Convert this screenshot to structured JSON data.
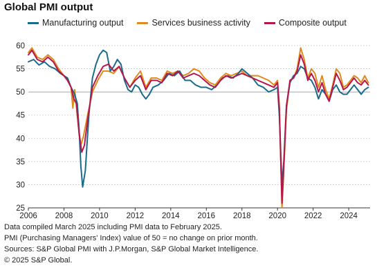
{
  "chart_data": {
    "type": "line",
    "title": "Global PMI output",
    "xlabel": "",
    "ylabel": "",
    "ylim": [
      25,
      60
    ],
    "yticks": [
      25,
      30,
      35,
      40,
      45,
      50,
      55,
      60
    ],
    "xlim": [
      2006,
      2025.2
    ],
    "xticks": [
      2006,
      2008,
      2010,
      2012,
      2014,
      2016,
      2018,
      2020,
      2022,
      2024
    ],
    "reference_line": 50,
    "grid": "horizontal dashed",
    "legend_position": "top",
    "series": [
      {
        "name": "Manufacturing output",
        "color": "#1a6b8a",
        "points": [
          [
            2006.0,
            56.5
          ],
          [
            2006.3,
            57.0
          ],
          [
            2006.6,
            55.8
          ],
          [
            2006.9,
            56.5
          ],
          [
            2007.2,
            55.5
          ],
          [
            2007.5,
            55.0
          ],
          [
            2007.8,
            54.0
          ],
          [
            2008.0,
            53.5
          ],
          [
            2008.2,
            53.0
          ],
          [
            2008.4,
            51.0
          ],
          [
            2008.6,
            49.5
          ],
          [
            2008.75,
            47.5
          ],
          [
            2008.85,
            42.0
          ],
          [
            2008.95,
            34.0
          ],
          [
            2009.05,
            29.5
          ],
          [
            2009.2,
            33.0
          ],
          [
            2009.4,
            45.0
          ],
          [
            2009.6,
            53.0
          ],
          [
            2009.8,
            56.0
          ],
          [
            2010.0,
            58.0
          ],
          [
            2010.2,
            59.0
          ],
          [
            2010.4,
            58.5
          ],
          [
            2010.6,
            54.5
          ],
          [
            2010.8,
            55.5
          ],
          [
            2011.0,
            57.0
          ],
          [
            2011.2,
            56.0
          ],
          [
            2011.4,
            52.5
          ],
          [
            2011.6,
            50.5
          ],
          [
            2011.8,
            50.0
          ],
          [
            2012.0,
            51.5
          ],
          [
            2012.2,
            51.0
          ],
          [
            2012.4,
            49.5
          ],
          [
            2012.6,
            48.5
          ],
          [
            2012.8,
            49.5
          ],
          [
            2013.0,
            51.0
          ],
          [
            2013.3,
            51.5
          ],
          [
            2013.6,
            52.5
          ],
          [
            2013.9,
            54.0
          ],
          [
            2014.2,
            53.5
          ],
          [
            2014.5,
            54.5
          ],
          [
            2014.8,
            52.5
          ],
          [
            2015.1,
            52.5
          ],
          [
            2015.4,
            51.5
          ],
          [
            2015.7,
            51.0
          ],
          [
            2016.0,
            51.0
          ],
          [
            2016.3,
            50.5
          ],
          [
            2016.6,
            51.5
          ],
          [
            2016.9,
            53.0
          ],
          [
            2017.2,
            53.5
          ],
          [
            2017.5,
            53.0
          ],
          [
            2017.8,
            54.0
          ],
          [
            2018.0,
            55.0
          ],
          [
            2018.3,
            54.0
          ],
          [
            2018.6,
            53.0
          ],
          [
            2018.9,
            51.5
          ],
          [
            2019.2,
            51.0
          ],
          [
            2019.5,
            50.0
          ],
          [
            2019.8,
            50.5
          ],
          [
            2020.0,
            51.0
          ],
          [
            2020.1,
            45.0
          ],
          [
            2020.25,
            30.0
          ],
          [
            2020.35,
            35.0
          ],
          [
            2020.5,
            47.0
          ],
          [
            2020.7,
            52.0
          ],
          [
            2020.9,
            53.5
          ],
          [
            2021.1,
            54.0
          ],
          [
            2021.3,
            55.5
          ],
          [
            2021.5,
            55.0
          ],
          [
            2021.7,
            53.0
          ],
          [
            2021.9,
            52.5
          ],
          [
            2022.1,
            51.0
          ],
          [
            2022.3,
            48.5
          ],
          [
            2022.5,
            50.5
          ],
          [
            2022.7,
            49.5
          ],
          [
            2022.9,
            48.0
          ],
          [
            2023.1,
            50.5
          ],
          [
            2023.3,
            51.5
          ],
          [
            2023.5,
            50.0
          ],
          [
            2023.7,
            49.5
          ],
          [
            2023.9,
            49.5
          ],
          [
            2024.1,
            50.5
          ],
          [
            2024.3,
            51.5
          ],
          [
            2024.5,
            50.5
          ],
          [
            2024.7,
            49.5
          ],
          [
            2024.9,
            50.5
          ],
          [
            2025.1,
            51.0
          ]
        ]
      },
      {
        "name": "Services business activity",
        "color": "#e08a1e",
        "points": [
          [
            2006.0,
            58.5
          ],
          [
            2006.2,
            59.5
          ],
          [
            2006.5,
            57.5
          ],
          [
            2006.8,
            57.0
          ],
          [
            2007.1,
            58.0
          ],
          [
            2007.4,
            57.0
          ],
          [
            2007.7,
            55.0
          ],
          [
            2008.0,
            53.5
          ],
          [
            2008.2,
            52.5
          ],
          [
            2008.4,
            51.0
          ],
          [
            2008.5,
            46.5
          ],
          [
            2008.6,
            50.5
          ],
          [
            2008.8,
            43.0
          ],
          [
            2008.95,
            38.5
          ],
          [
            2009.1,
            40.5
          ],
          [
            2009.3,
            44.5
          ],
          [
            2009.6,
            50.0
          ],
          [
            2009.9,
            52.5
          ],
          [
            2010.2,
            54.5
          ],
          [
            2010.5,
            54.5
          ],
          [
            2010.8,
            54.0
          ],
          [
            2011.1,
            55.5
          ],
          [
            2011.4,
            53.0
          ],
          [
            2011.7,
            51.0
          ],
          [
            2012.0,
            53.0
          ],
          [
            2012.3,
            54.5
          ],
          [
            2012.6,
            51.0
          ],
          [
            2012.9,
            53.0
          ],
          [
            2013.2,
            53.0
          ],
          [
            2013.5,
            52.5
          ],
          [
            2013.8,
            54.5
          ],
          [
            2014.1,
            54.0
          ],
          [
            2014.4,
            54.5
          ],
          [
            2014.7,
            53.5
          ],
          [
            2015.0,
            54.0
          ],
          [
            2015.3,
            55.0
          ],
          [
            2015.6,
            54.5
          ],
          [
            2015.9,
            53.0
          ],
          [
            2016.2,
            52.0
          ],
          [
            2016.5,
            51.5
          ],
          [
            2016.8,
            53.0
          ],
          [
            2017.1,
            54.0
          ],
          [
            2017.4,
            53.5
          ],
          [
            2017.7,
            54.0
          ],
          [
            2018.0,
            54.5
          ],
          [
            2018.3,
            53.5
          ],
          [
            2018.6,
            53.5
          ],
          [
            2018.9,
            53.5
          ],
          [
            2019.2,
            53.0
          ],
          [
            2019.5,
            52.5
          ],
          [
            2019.8,
            51.5
          ],
          [
            2020.0,
            52.5
          ],
          [
            2020.1,
            47.0
          ],
          [
            2020.25,
            25.0
          ],
          [
            2020.35,
            33.0
          ],
          [
            2020.5,
            46.0
          ],
          [
            2020.7,
            52.5
          ],
          [
            2020.9,
            53.0
          ],
          [
            2021.1,
            55.0
          ],
          [
            2021.3,
            59.5
          ],
          [
            2021.5,
            57.0
          ],
          [
            2021.7,
            53.0
          ],
          [
            2021.9,
            55.0
          ],
          [
            2022.1,
            54.0
          ],
          [
            2022.3,
            51.0
          ],
          [
            2022.5,
            53.5
          ],
          [
            2022.7,
            50.5
          ],
          [
            2022.9,
            48.5
          ],
          [
            2023.1,
            51.5
          ],
          [
            2023.3,
            55.0
          ],
          [
            2023.5,
            54.0
          ],
          [
            2023.7,
            51.0
          ],
          [
            2023.9,
            51.5
          ],
          [
            2024.1,
            52.5
          ],
          [
            2024.3,
            53.5
          ],
          [
            2024.5,
            53.0
          ],
          [
            2024.7,
            52.0
          ],
          [
            2024.9,
            53.5
          ],
          [
            2025.1,
            52.0
          ]
        ]
      },
      {
        "name": "Composite output",
        "color": "#b5174b",
        "points": [
          [
            2006.0,
            58.0
          ],
          [
            2006.2,
            59.0
          ],
          [
            2006.5,
            57.0
          ],
          [
            2006.8,
            56.5
          ],
          [
            2007.1,
            57.5
          ],
          [
            2007.4,
            56.5
          ],
          [
            2007.7,
            54.5
          ],
          [
            2008.0,
            53.5
          ],
          [
            2008.2,
            52.5
          ],
          [
            2008.4,
            51.0
          ],
          [
            2008.55,
            48.5
          ],
          [
            2008.7,
            47.5
          ],
          [
            2008.85,
            41.0
          ],
          [
            2009.0,
            37.0
          ],
          [
            2009.15,
            38.5
          ],
          [
            2009.35,
            44.5
          ],
          [
            2009.6,
            51.0
          ],
          [
            2009.9,
            53.5
          ],
          [
            2010.2,
            55.5
          ],
          [
            2010.5,
            56.0
          ],
          [
            2010.8,
            54.5
          ],
          [
            2011.1,
            55.5
          ],
          [
            2011.4,
            53.0
          ],
          [
            2011.7,
            51.0
          ],
          [
            2012.0,
            52.5
          ],
          [
            2012.3,
            53.5
          ],
          [
            2012.6,
            50.5
          ],
          [
            2012.9,
            52.5
          ],
          [
            2013.2,
            52.5
          ],
          [
            2013.5,
            52.0
          ],
          [
            2013.8,
            54.0
          ],
          [
            2014.1,
            53.5
          ],
          [
            2014.4,
            54.5
          ],
          [
            2014.7,
            53.0
          ],
          [
            2015.0,
            53.5
          ],
          [
            2015.3,
            54.0
          ],
          [
            2015.6,
            53.5
          ],
          [
            2015.9,
            52.5
          ],
          [
            2016.2,
            51.5
          ],
          [
            2016.5,
            51.0
          ],
          [
            2016.8,
            52.5
          ],
          [
            2017.1,
            53.5
          ],
          [
            2017.4,
            53.0
          ],
          [
            2017.7,
            53.5
          ],
          [
            2018.0,
            54.0
          ],
          [
            2018.3,
            53.5
          ],
          [
            2018.6,
            53.0
          ],
          [
            2018.9,
            52.5
          ],
          [
            2019.2,
            52.0
          ],
          [
            2019.5,
            51.5
          ],
          [
            2019.8,
            51.0
          ],
          [
            2020.0,
            52.0
          ],
          [
            2020.1,
            46.5
          ],
          [
            2020.25,
            26.0
          ],
          [
            2020.35,
            34.0
          ],
          [
            2020.5,
            47.0
          ],
          [
            2020.7,
            52.5
          ],
          [
            2020.9,
            53.0
          ],
          [
            2021.1,
            54.5
          ],
          [
            2021.3,
            58.0
          ],
          [
            2021.5,
            56.0
          ],
          [
            2021.7,
            52.5
          ],
          [
            2021.9,
            54.0
          ],
          [
            2022.1,
            52.5
          ],
          [
            2022.3,
            50.0
          ],
          [
            2022.5,
            52.0
          ],
          [
            2022.7,
            49.5
          ],
          [
            2022.9,
            48.0
          ],
          [
            2023.1,
            51.0
          ],
          [
            2023.3,
            54.0
          ],
          [
            2023.5,
            52.5
          ],
          [
            2023.7,
            50.5
          ],
          [
            2023.9,
            51.0
          ],
          [
            2024.1,
            52.0
          ],
          [
            2024.3,
            53.0
          ],
          [
            2024.5,
            52.0
          ],
          [
            2024.7,
            51.5
          ],
          [
            2024.9,
            52.5
          ],
          [
            2025.1,
            51.5
          ]
        ]
      }
    ]
  },
  "notes": [
    "Data compiled March 2025 including PMI data to February 2025.",
    "PMI (Purchasing Managers' Index) value of 50 = no change on prior month.",
    "Sources: S&P Global PMI with J.P.Morgan, S&P Global Market Intelligence.",
    "© 2025 S&P Global."
  ]
}
